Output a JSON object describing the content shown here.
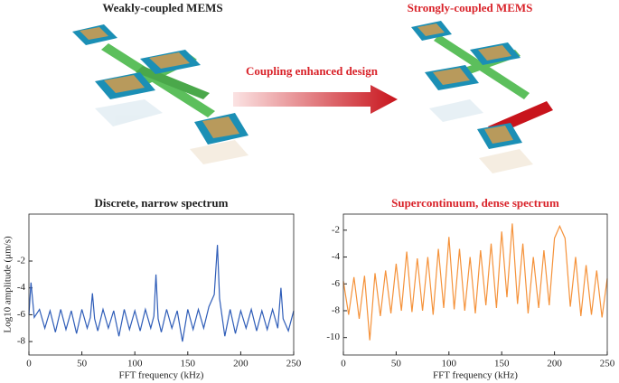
{
  "illustration": {
    "left_title": "Weakly-coupled MEMS",
    "right_title": "Strongly-coupled MEMS",
    "arrow_label": "Coupling enhanced design"
  },
  "chart_data": [
    {
      "type": "line",
      "title": "Discrete, narrow spectrum",
      "xlabel": "FFT frequency (kHz)",
      "ylabel": "Log10 amplitude (μm/s)",
      "x": [
        0,
        2,
        5,
        10,
        15,
        20,
        25,
        30,
        35,
        40,
        45,
        50,
        55,
        58,
        60,
        62,
        65,
        70,
        75,
        80,
        85,
        90,
        95,
        100,
        105,
        110,
        115,
        118,
        120,
        122,
        125,
        130,
        135,
        140,
        145,
        150,
        155,
        160,
        165,
        170,
        175,
        178,
        180,
        185,
        190,
        195,
        200,
        205,
        210,
        215,
        220,
        225,
        230,
        235,
        238,
        240,
        245,
        250
      ],
      "series": [
        {
          "color": "#2f5db8",
          "values": [
            -6.0,
            -3.6,
            -6.2,
            -5.6,
            -7.0,
            -5.7,
            -7.3,
            -5.6,
            -7.1,
            -5.7,
            -7.4,
            -5.6,
            -7.0,
            -6.2,
            -4.4,
            -6.3,
            -7.2,
            -5.6,
            -7.0,
            -5.7,
            -7.6,
            -5.6,
            -7.1,
            -5.7,
            -7.2,
            -5.6,
            -7.0,
            -6.1,
            -3.0,
            -6.3,
            -7.3,
            -5.6,
            -7.0,
            -5.7,
            -8.0,
            -5.6,
            -7.1,
            -5.6,
            -7.0,
            -5.4,
            -4.5,
            -0.8,
            -4.8,
            -7.6,
            -5.6,
            -7.4,
            -5.7,
            -7.0,
            -5.6,
            -7.2,
            -5.7,
            -7.1,
            -5.6,
            -7.0,
            -4.0,
            -6.3,
            -7.2,
            -5.7
          ]
        }
      ],
      "xlim": [
        0,
        250
      ],
      "ylim": [
        -9,
        1.5
      ],
      "xticks": [
        0,
        50,
        100,
        150,
        200,
        250
      ],
      "yticks": [
        -8,
        -6,
        -4,
        -2
      ]
    },
    {
      "type": "line",
      "title": "Supercontinuum, dense spectrum",
      "title_color": "#d9232a",
      "xlabel": "FFT frequency (kHz)",
      "x": [
        0,
        5,
        10,
        15,
        20,
        25,
        30,
        35,
        40,
        45,
        50,
        55,
        60,
        65,
        70,
        75,
        80,
        85,
        90,
        95,
        100,
        105,
        110,
        115,
        120,
        125,
        130,
        135,
        140,
        145,
        150,
        155,
        160,
        165,
        170,
        175,
        180,
        185,
        190,
        195,
        200,
        205,
        210,
        215,
        220,
        225,
        230,
        235,
        240,
        245,
        250
      ],
      "series": [
        {
          "color": "#f5923a",
          "values": [
            -5.8,
            -8.3,
            -5.5,
            -8.6,
            -5.4,
            -10.2,
            -5.2,
            -8.4,
            -5.0,
            -8.2,
            -4.5,
            -8.0,
            -3.6,
            -8.1,
            -4.1,
            -8.0,
            -4.0,
            -8.3,
            -3.4,
            -7.8,
            -2.5,
            -7.9,
            -3.4,
            -8.0,
            -4.0,
            -8.2,
            -3.5,
            -7.6,
            -3.0,
            -7.8,
            -2.1,
            -7.0,
            -1.5,
            -7.5,
            -3.0,
            -8.2,
            -4.0,
            -7.8,
            -3.5,
            -7.6,
            -2.6,
            -1.7,
            -2.6,
            -7.7,
            -4.0,
            -8.4,
            -4.6,
            -8.3,
            -5.0,
            -8.5,
            -5.6
          ]
        }
      ],
      "xlim": [
        0,
        250
      ],
      "ylim": [
        -11.3,
        -0.8
      ],
      "xticks": [
        0,
        50,
        100,
        150,
        200,
        250
      ],
      "yticks": [
        -10,
        -8,
        -6,
        -4,
        -2
      ]
    }
  ]
}
